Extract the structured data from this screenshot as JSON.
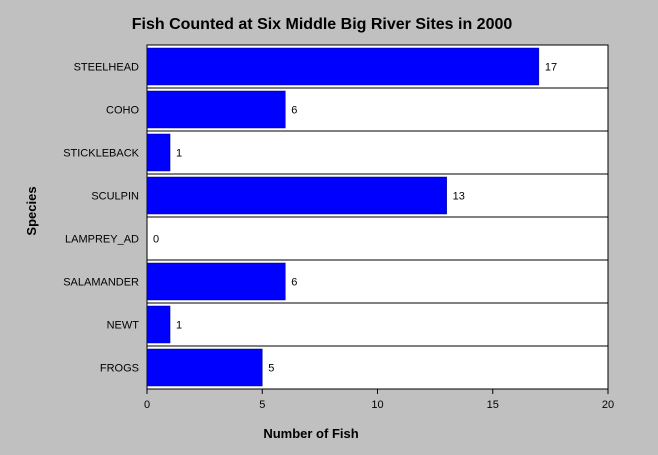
{
  "chart_data": {
    "type": "bar",
    "orientation": "horizontal",
    "title": "Fish Counted at Six Middle Big River Sites in 2000",
    "xlabel": "Number of Fish",
    "ylabel": "Species",
    "categories": [
      "STEELHEAD",
      "COHO",
      "STICKLEBACK",
      "SCULPIN",
      "LAMPREY_AD",
      "SALAMANDER",
      "NEWT",
      "FROGS"
    ],
    "values": [
      17,
      6,
      1,
      13,
      0,
      6,
      1,
      5
    ],
    "xlim": [
      0,
      20
    ],
    "xticks": [
      0,
      5,
      10,
      15,
      20
    ],
    "bar_color": "#0000ff",
    "background_color": "#c0c0c0",
    "plot_background_color": "#ffffff",
    "grid": "horizontal-category-separators",
    "legend": "none"
  }
}
